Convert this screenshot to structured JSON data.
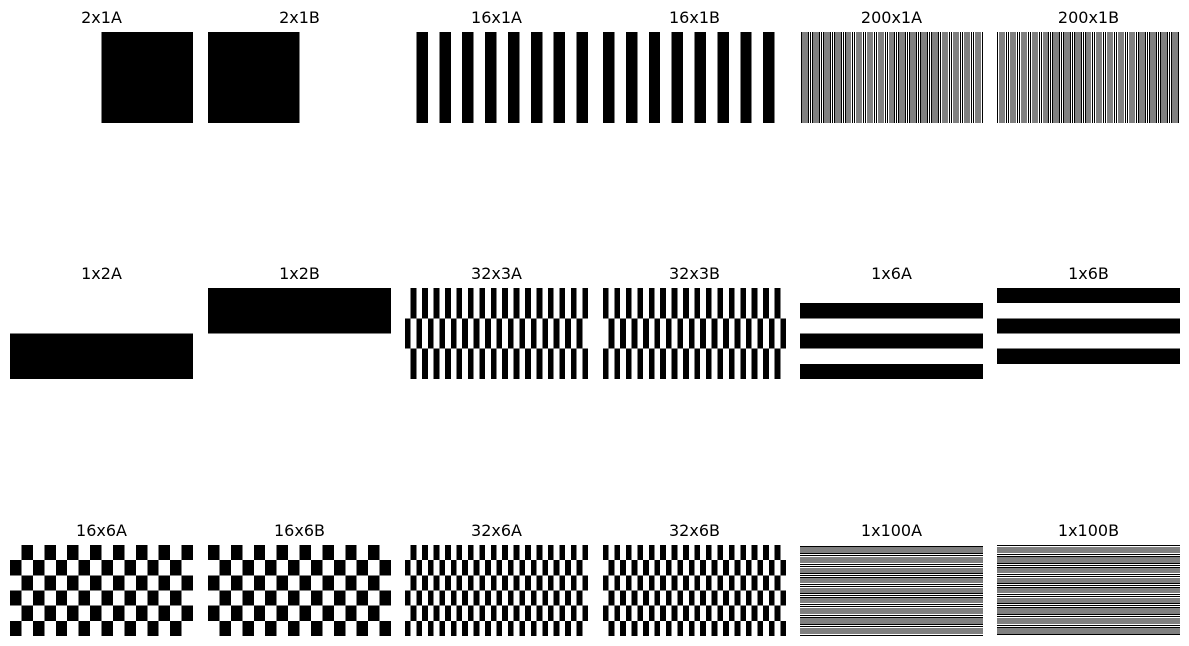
{
  "figure": {
    "colors": {
      "background": "#ffffff",
      "ink": "#000000"
    },
    "panels": [
      {
        "title": "2x1A",
        "cols": 2,
        "rows": 1,
        "phase": 0
      },
      {
        "title": "2x1B",
        "cols": 2,
        "rows": 1,
        "phase": 1
      },
      {
        "title": "16x1A",
        "cols": 16,
        "rows": 1,
        "phase": 0
      },
      {
        "title": "16x1B",
        "cols": 16,
        "rows": 1,
        "phase": 1
      },
      {
        "title": "200x1A",
        "cols": 200,
        "rows": 1,
        "phase": 0
      },
      {
        "title": "200x1B",
        "cols": 200,
        "rows": 1,
        "phase": 1
      },
      {
        "title": "1x2A",
        "cols": 1,
        "rows": 2,
        "phase": 0
      },
      {
        "title": "1x2B",
        "cols": 1,
        "rows": 2,
        "phase": 1
      },
      {
        "title": "32x3A",
        "cols": 32,
        "rows": 3,
        "phase": 0
      },
      {
        "title": "32x3B",
        "cols": 32,
        "rows": 3,
        "phase": 1
      },
      {
        "title": "1x6A",
        "cols": 1,
        "rows": 6,
        "phase": 0
      },
      {
        "title": "1x6B",
        "cols": 1,
        "rows": 6,
        "phase": 1
      },
      {
        "title": "16x6A",
        "cols": 16,
        "rows": 6,
        "phase": 0
      },
      {
        "title": "16x6B",
        "cols": 16,
        "rows": 6,
        "phase": 1
      },
      {
        "title": "32x6A",
        "cols": 32,
        "rows": 6,
        "phase": 0
      },
      {
        "title": "32x6B",
        "cols": 32,
        "rows": 6,
        "phase": 1
      },
      {
        "title": "1x100A",
        "cols": 1,
        "rows": 100,
        "phase": 0
      },
      {
        "title": "1x100B",
        "cols": 1,
        "rows": 100,
        "phase": 1
      }
    ]
  }
}
